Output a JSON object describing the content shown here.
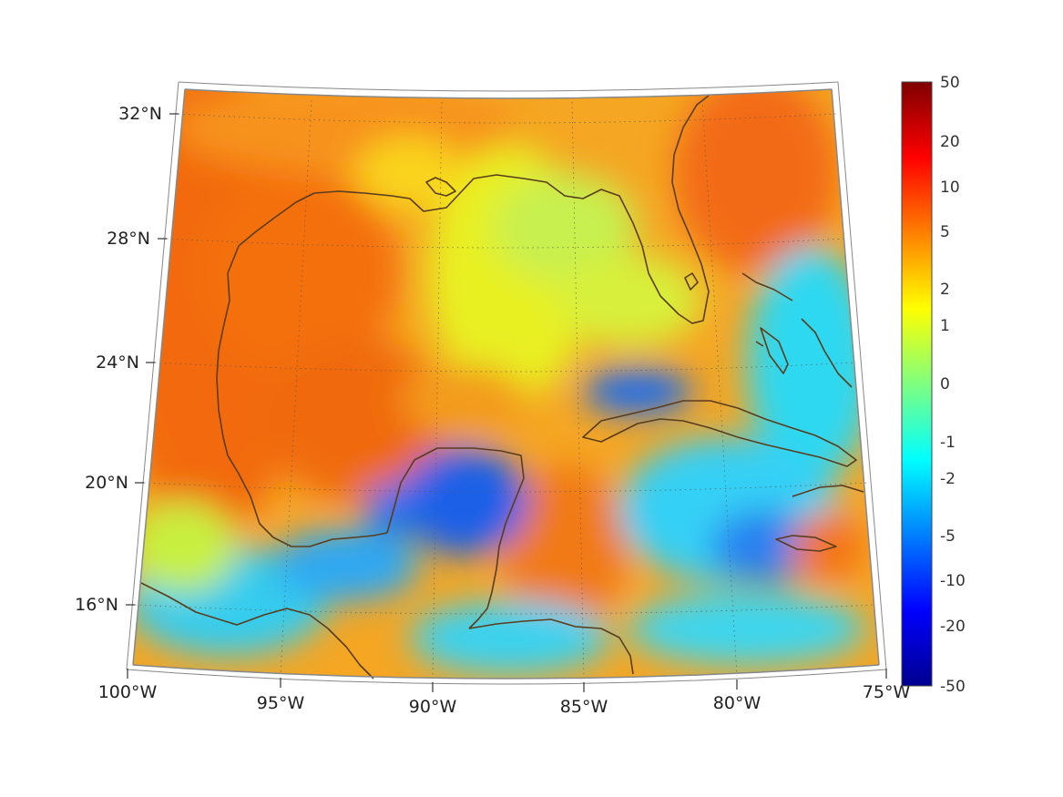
{
  "map": {
    "lon_labels": [
      "100°W",
      "95°W",
      "90°W",
      "85°W",
      "80°W",
      "75°W"
    ],
    "lat_labels": [
      "16°N",
      "20°N",
      "24°N",
      "28°N",
      "32°N"
    ],
    "extent": {
      "lon_min": -100,
      "lon_max": -75,
      "lat_min": 14,
      "lat_max": 33
    },
    "grid": "dotted",
    "coastline_color": "#5a3d1e",
    "colorbar": {
      "ticks": [
        "50",
        "20",
        "10",
        "5",
        "2",
        "1",
        "0",
        "-1",
        "-2",
        "-5",
        "-10",
        "-20",
        "-50"
      ],
      "colormap": "jet",
      "placement": "right"
    }
  }
}
